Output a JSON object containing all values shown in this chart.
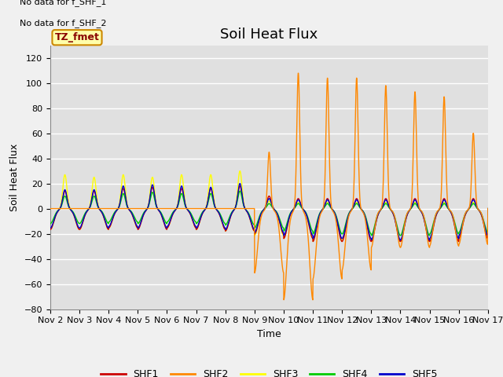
{
  "title": "Soil Heat Flux",
  "ylabel": "Soil Heat Flux",
  "xlabel": "Time",
  "xlim": [
    0,
    15
  ],
  "ylim": [
    -80,
    130
  ],
  "yticks": [
    -80,
    -60,
    -40,
    -20,
    0,
    20,
    40,
    60,
    80,
    100,
    120
  ],
  "xtick_labels": [
    "Nov 2",
    "Nov 3",
    "Nov 4",
    "Nov 5",
    "Nov 6",
    "Nov 7",
    "Nov 8",
    "Nov 9",
    "Nov 10",
    "Nov 11",
    "Nov 12",
    "Nov 13",
    "Nov 14",
    "Nov 15",
    "Nov 16",
    "Nov 17"
  ],
  "colors": {
    "SHF1": "#cc0000",
    "SHF2": "#ff8800",
    "SHF3": "#ffff00",
    "SHF4": "#00cc00",
    "SHF5": "#0000cc"
  },
  "no_data_text": [
    "No data for f_SHF_1",
    "No data for f_SHF_2"
  ],
  "box_label": "TZ_fmet",
  "bg_color": "#e0e0e0",
  "grid_color": "#ffffff",
  "title_fontsize": 13,
  "axis_fontsize": 9,
  "tick_fontsize": 8
}
